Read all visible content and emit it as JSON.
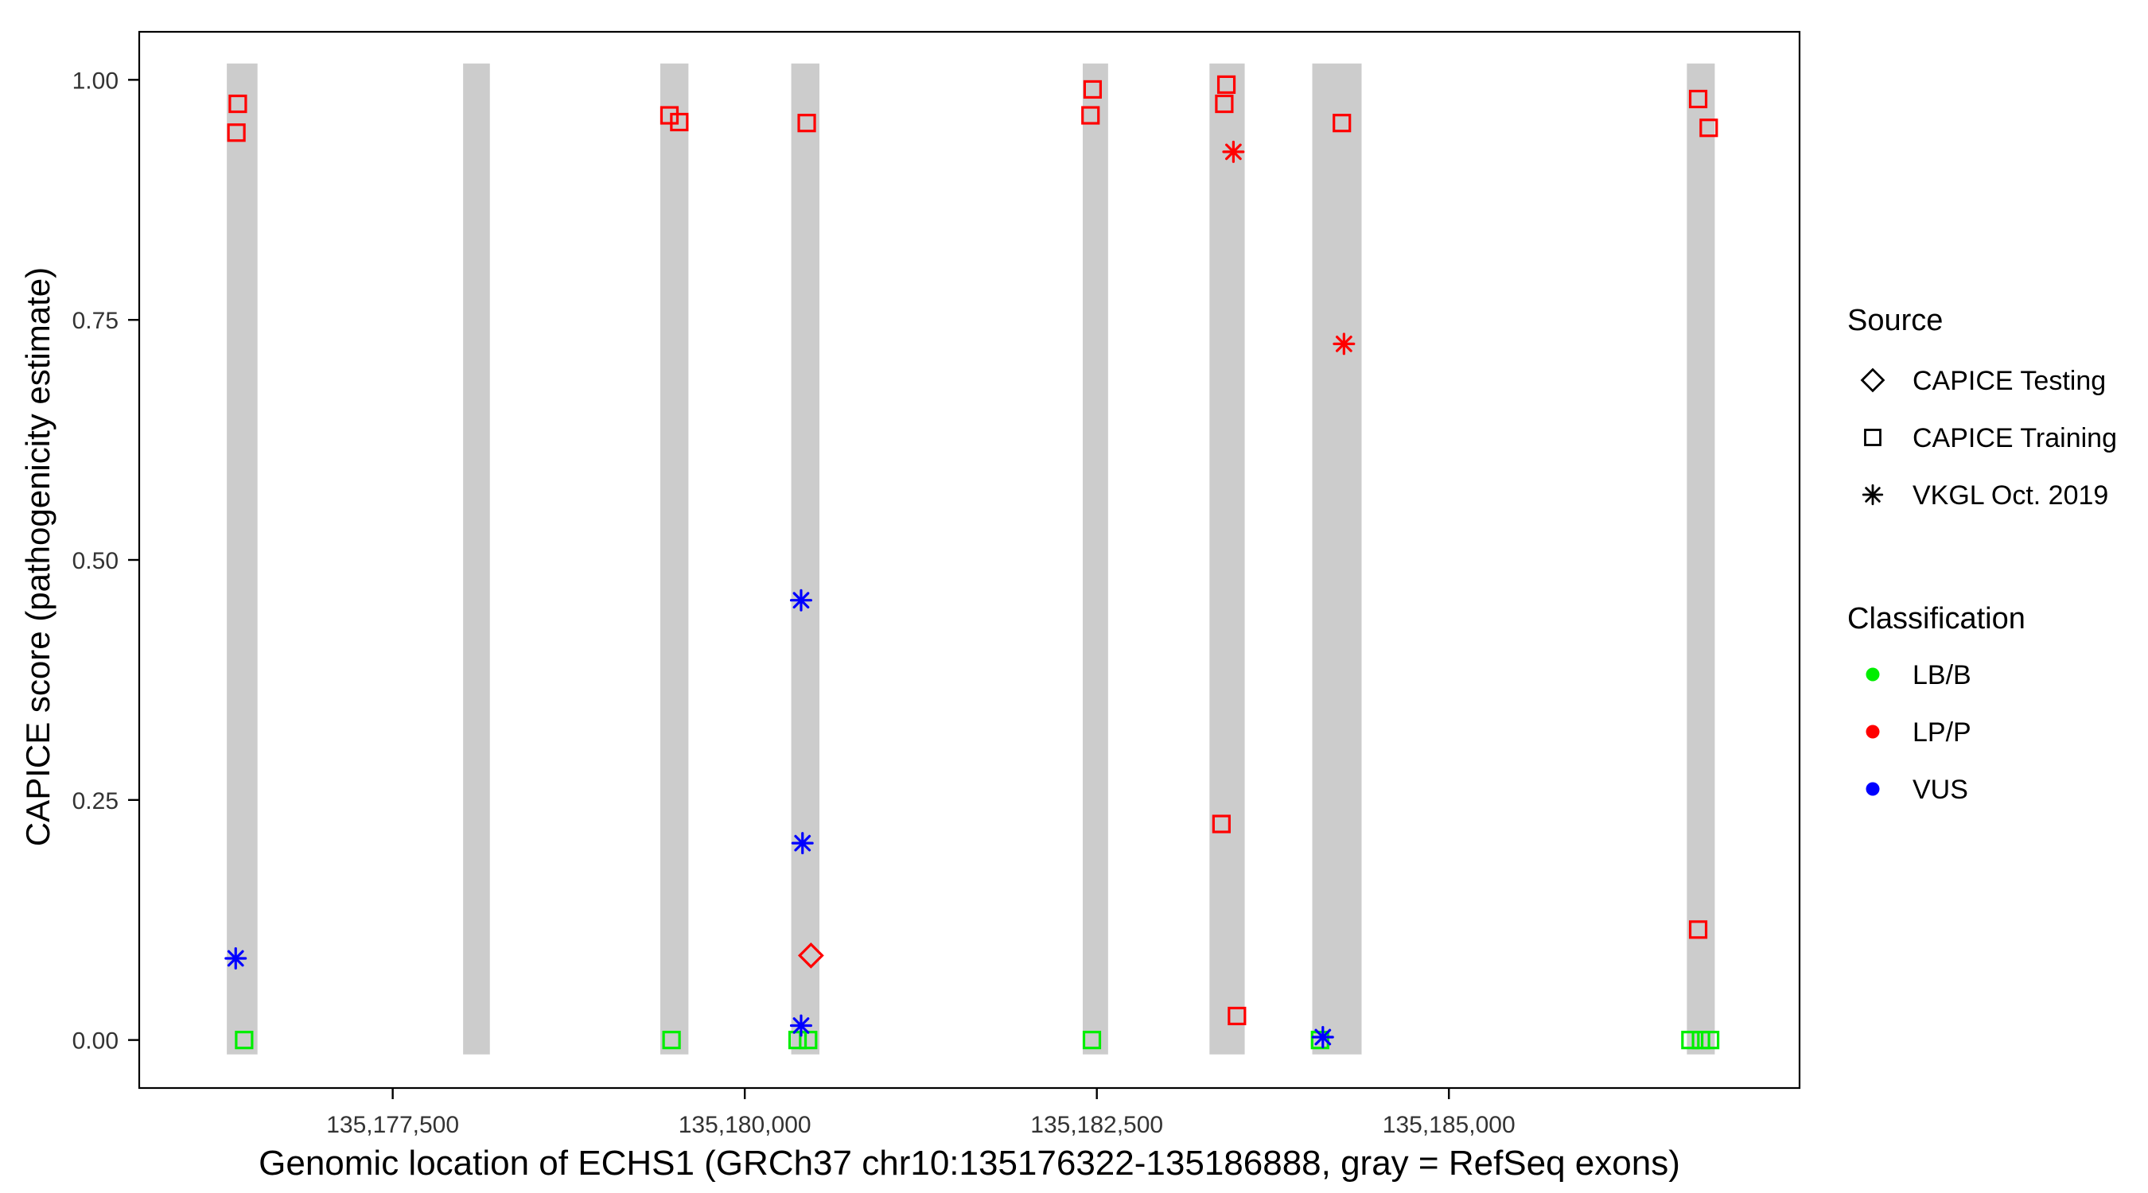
{
  "figure": {
    "background": "#ffffff",
    "panel_border_color": "#000000",
    "tick_label_color": "#333333"
  },
  "chart_data": {
    "type": "scatter",
    "title": "",
    "xlabel": "Genomic location of ECHS1 (GRCh37 chr10:135176322-135186888, gray = RefSeq exons)",
    "ylabel": "CAPICE score (pathogenicity estimate)",
    "x_domain": [
      135175700,
      135187490
    ],
    "y_domain": [
      -0.05,
      1.05
    ],
    "grid": false,
    "legend_position": "right",
    "x_ticks": [
      {
        "value": 135177500,
        "label": "135,177,500"
      },
      {
        "value": 135180000,
        "label": "135,180,000"
      },
      {
        "value": 135182500,
        "label": "135,182,500"
      },
      {
        "value": 135185000,
        "label": "135,185,000"
      }
    ],
    "y_ticks": [
      {
        "value": 0.0,
        "label": "0.00"
      },
      {
        "value": 0.25,
        "label": "0.25"
      },
      {
        "value": 0.5,
        "label": "0.50"
      },
      {
        "value": 0.75,
        "label": "0.75"
      },
      {
        "value": 1.0,
        "label": "1.00"
      }
    ],
    "exon_color": "#CCCCCC",
    "exon_bar_y": [
      -0.015,
      1.017
    ],
    "exons": [
      {
        "start": 135176322,
        "end": 135176540
      },
      {
        "start": 135178000,
        "end": 135178190
      },
      {
        "start": 135179400,
        "end": 135179600
      },
      {
        "start": 135180330,
        "end": 135180530
      },
      {
        "start": 135182400,
        "end": 135182580
      },
      {
        "start": 135183300,
        "end": 135183550
      },
      {
        "start": 135184030,
        "end": 135184380
      },
      {
        "start": 135186690,
        "end": 135186888
      }
    ],
    "points": [
      {
        "x": 135176400,
        "y": 0.975,
        "shape": "square",
        "cls": "LP/P"
      },
      {
        "x": 135176390,
        "y": 0.945,
        "shape": "square",
        "cls": "LP/P"
      },
      {
        "x": 135176385,
        "y": 0.085,
        "shape": "asterisk",
        "cls": "VUS"
      },
      {
        "x": 135176445,
        "y": 0.0,
        "shape": "square",
        "cls": "LB/B"
      },
      {
        "x": 135179465,
        "y": 0.963,
        "shape": "square",
        "cls": "LP/P"
      },
      {
        "x": 135179535,
        "y": 0.956,
        "shape": "square",
        "cls": "LP/P"
      },
      {
        "x": 135179480,
        "y": 0.0,
        "shape": "square",
        "cls": "LB/B"
      },
      {
        "x": 135180440,
        "y": 0.955,
        "shape": "square",
        "cls": "LP/P"
      },
      {
        "x": 135180400,
        "y": 0.458,
        "shape": "asterisk",
        "cls": "VUS"
      },
      {
        "x": 135180410,
        "y": 0.205,
        "shape": "asterisk",
        "cls": "VUS"
      },
      {
        "x": 135180470,
        "y": 0.088,
        "shape": "diamond",
        "cls": "LP/P"
      },
      {
        "x": 135180375,
        "y": 0.0,
        "shape": "square",
        "cls": "LB/B"
      },
      {
        "x": 135180450,
        "y": 0.0,
        "shape": "square",
        "cls": "LB/B"
      },
      {
        "x": 135180400,
        "y": 0.015,
        "shape": "asterisk",
        "cls": "VUS"
      },
      {
        "x": 135182470,
        "y": 0.99,
        "shape": "square",
        "cls": "LP/P"
      },
      {
        "x": 135182455,
        "y": 0.963,
        "shape": "square",
        "cls": "LP/P"
      },
      {
        "x": 135182465,
        "y": 0.0,
        "shape": "square",
        "cls": "LB/B"
      },
      {
        "x": 135183420,
        "y": 0.995,
        "shape": "square",
        "cls": "LP/P"
      },
      {
        "x": 135183405,
        "y": 0.975,
        "shape": "square",
        "cls": "LP/P"
      },
      {
        "x": 135183470,
        "y": 0.925,
        "shape": "asterisk",
        "cls": "LP/P"
      },
      {
        "x": 135183385,
        "y": 0.225,
        "shape": "square",
        "cls": "LP/P"
      },
      {
        "x": 135183495,
        "y": 0.025,
        "shape": "square",
        "cls": "LP/P"
      },
      {
        "x": 135184240,
        "y": 0.955,
        "shape": "square",
        "cls": "LP/P"
      },
      {
        "x": 135184255,
        "y": 0.725,
        "shape": "asterisk",
        "cls": "LP/P"
      },
      {
        "x": 135184085,
        "y": 0.0,
        "shape": "square",
        "cls": "LB/B"
      },
      {
        "x": 135184105,
        "y": 0.003,
        "shape": "asterisk",
        "cls": "VUS"
      },
      {
        "x": 135186770,
        "y": 0.98,
        "shape": "square",
        "cls": "LP/P"
      },
      {
        "x": 135186845,
        "y": 0.95,
        "shape": "square",
        "cls": "LP/P"
      },
      {
        "x": 135186770,
        "y": 0.115,
        "shape": "square",
        "cls": "LP/P"
      },
      {
        "x": 135186715,
        "y": 0.0,
        "shape": "square",
        "cls": "LB/B"
      },
      {
        "x": 135186790,
        "y": 0.0,
        "shape": "square",
        "cls": "LB/B"
      },
      {
        "x": 135186855,
        "y": 0.0,
        "shape": "square",
        "cls": "LB/B"
      }
    ],
    "legend": {
      "source": {
        "title": "Source",
        "items": [
          {
            "shape": "diamond",
            "label": "CAPICE Testing"
          },
          {
            "shape": "square",
            "label": "CAPICE Training"
          },
          {
            "shape": "asterisk",
            "label": "VKGL Oct. 2019"
          }
        ]
      },
      "classification": {
        "title": "Classification",
        "items": [
          {
            "label": "LB/B",
            "color": "#00EE00"
          },
          {
            "label": "LP/P",
            "color": "#FF0000"
          },
          {
            "label": "VUS",
            "color": "#0000FF"
          }
        ]
      }
    }
  }
}
